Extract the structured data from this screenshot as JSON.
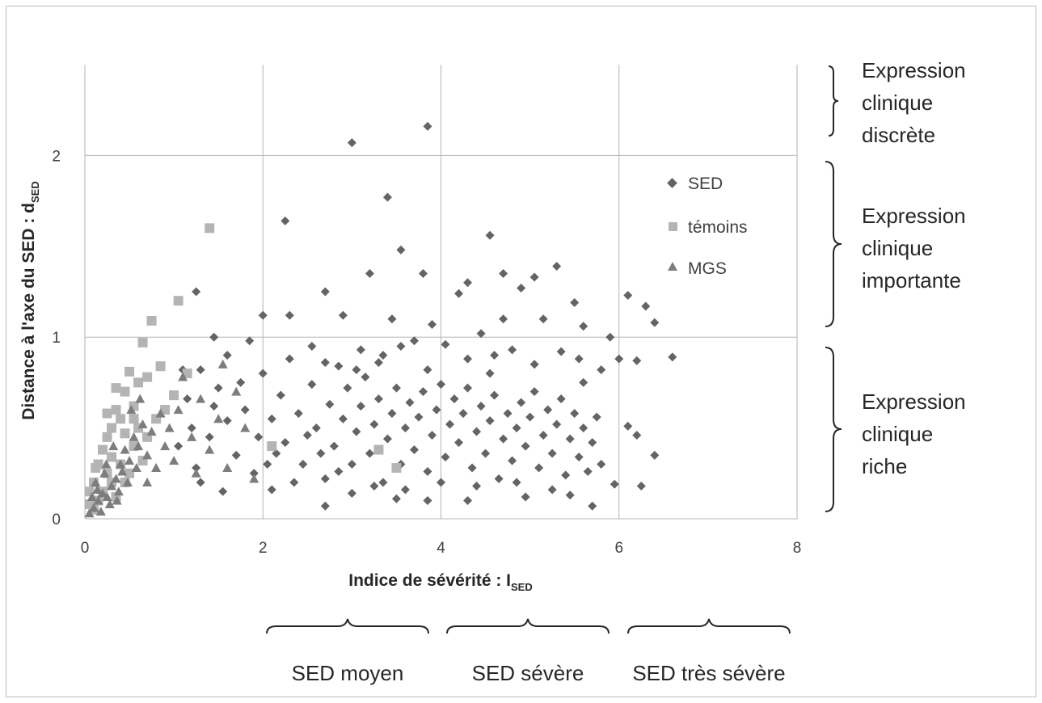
{
  "chart_data": {
    "type": "scatter",
    "xlabel": {
      "main": "Indice de sévérité : I",
      "sub": "SED"
    },
    "ylabel": {
      "main": "Distance à l'axe du SED : d",
      "sub": "SED"
    },
    "xlim": [
      0,
      8
    ],
    "ylim": [
      0,
      2.5
    ],
    "xticks": [
      "0",
      "2",
      "4",
      "6",
      "8"
    ],
    "yticks": [
      "0",
      "1",
      "2"
    ],
    "grid": true,
    "legend_position": "top-right",
    "series": [
      {
        "name": "SED",
        "marker": "diamond",
        "color": "#646464",
        "points": [
          [
            3.85,
            2.16
          ],
          [
            3.0,
            2.07
          ],
          [
            3.4,
            1.77
          ],
          [
            2.25,
            1.64
          ],
          [
            4.55,
            1.56
          ],
          [
            3.55,
            1.48
          ],
          [
            5.3,
            1.39
          ],
          [
            3.2,
            1.35
          ],
          [
            3.8,
            1.35
          ],
          [
            4.7,
            1.35
          ],
          [
            1.25,
            1.25
          ],
          [
            5.5,
            1.19
          ],
          [
            6.1,
            1.23
          ],
          [
            6.3,
            1.17
          ],
          [
            6.4,
            1.08
          ],
          [
            4.3,
            1.3
          ],
          [
            4.2,
            1.24
          ],
          [
            5.05,
            1.33
          ],
          [
            4.9,
            1.27
          ],
          [
            2.7,
            1.25
          ],
          [
            2.9,
            1.12
          ],
          [
            2.0,
            1.12
          ],
          [
            1.45,
            1.0
          ],
          [
            2.3,
            1.12
          ],
          [
            6.6,
            0.89
          ],
          [
            6.2,
            0.87
          ],
          [
            6.0,
            0.88
          ],
          [
            5.9,
            1.0
          ],
          [
            5.6,
            1.06
          ],
          [
            3.9,
            1.07
          ],
          [
            4.7,
            1.1
          ],
          [
            3.45,
            1.1
          ],
          [
            3.7,
            0.98
          ],
          [
            4.45,
            1.02
          ],
          [
            5.15,
            1.1
          ],
          [
            1.3,
            0.82
          ],
          [
            1.6,
            0.9
          ],
          [
            1.85,
            0.98
          ],
          [
            1.15,
            0.66
          ],
          [
            1.5,
            0.72
          ],
          [
            2.0,
            0.8
          ],
          [
            2.3,
            0.88
          ],
          [
            2.55,
            0.95
          ],
          [
            2.85,
            0.84
          ],
          [
            3.1,
            0.93
          ],
          [
            3.3,
            0.86
          ],
          [
            3.55,
            0.95
          ],
          [
            3.85,
            0.82
          ],
          [
            4.05,
            0.96
          ],
          [
            4.3,
            0.88
          ],
          [
            4.55,
            0.8
          ],
          [
            4.8,
            0.93
          ],
          [
            5.05,
            0.85
          ],
          [
            5.35,
            0.92
          ],
          [
            5.6,
            0.75
          ],
          [
            5.8,
            0.82
          ],
          [
            6.1,
            0.51
          ],
          [
            6.2,
            0.46
          ],
          [
            6.4,
            0.35
          ],
          [
            6.25,
            0.18
          ],
          [
            5.95,
            0.19
          ],
          [
            5.7,
            0.07
          ],
          [
            4.3,
            0.1
          ],
          [
            3.85,
            0.1
          ],
          [
            3.5,
            0.11
          ],
          [
            2.7,
            0.07
          ],
          [
            3.0,
            0.14
          ],
          [
            4.95,
            0.12
          ],
          [
            5.45,
            0.13
          ],
          [
            2.1,
            0.16
          ],
          [
            1.25,
            0.28
          ],
          [
            1.4,
            0.45
          ],
          [
            1.7,
            0.35
          ],
          [
            1.3,
            0.2
          ],
          [
            1.9,
            0.25
          ],
          [
            2.1,
            0.55
          ],
          [
            2.2,
            0.68
          ],
          [
            2.25,
            0.42
          ],
          [
            2.4,
            0.58
          ],
          [
            2.45,
            0.3
          ],
          [
            2.55,
            0.74
          ],
          [
            2.6,
            0.5
          ],
          [
            2.7,
            0.22
          ],
          [
            2.75,
            0.63
          ],
          [
            2.8,
            0.4
          ],
          [
            2.9,
            0.55
          ],
          [
            2.95,
            0.72
          ],
          [
            3.0,
            0.3
          ],
          [
            3.05,
            0.48
          ],
          [
            3.1,
            0.62
          ],
          [
            3.15,
            0.78
          ],
          [
            3.2,
            0.36
          ],
          [
            3.25,
            0.52
          ],
          [
            3.3,
            0.66
          ],
          [
            3.35,
            0.2
          ],
          [
            3.4,
            0.44
          ],
          [
            3.45,
            0.58
          ],
          [
            3.5,
            0.72
          ],
          [
            3.55,
            0.3
          ],
          [
            3.6,
            0.5
          ],
          [
            3.65,
            0.64
          ],
          [
            3.7,
            0.38
          ],
          [
            3.75,
            0.56
          ],
          [
            3.8,
            0.7
          ],
          [
            3.85,
            0.26
          ],
          [
            3.9,
            0.46
          ],
          [
            3.95,
            0.6
          ],
          [
            4.0,
            0.74
          ],
          [
            4.05,
            0.34
          ],
          [
            4.1,
            0.52
          ],
          [
            4.15,
            0.66
          ],
          [
            4.2,
            0.42
          ],
          [
            4.25,
            0.58
          ],
          [
            4.3,
            0.72
          ],
          [
            4.35,
            0.28
          ],
          [
            4.4,
            0.48
          ],
          [
            4.45,
            0.62
          ],
          [
            4.5,
            0.36
          ],
          [
            4.55,
            0.54
          ],
          [
            4.6,
            0.68
          ],
          [
            4.65,
            0.22
          ],
          [
            4.7,
            0.44
          ],
          [
            4.75,
            0.58
          ],
          [
            4.8,
            0.32
          ],
          [
            4.85,
            0.5
          ],
          [
            4.9,
            0.64
          ],
          [
            4.95,
            0.4
          ],
          [
            5.0,
            0.56
          ],
          [
            5.05,
            0.7
          ],
          [
            5.1,
            0.28
          ],
          [
            5.15,
            0.46
          ],
          [
            5.2,
            0.6
          ],
          [
            5.25,
            0.36
          ],
          [
            5.3,
            0.52
          ],
          [
            5.35,
            0.66
          ],
          [
            5.4,
            0.24
          ],
          [
            5.45,
            0.44
          ],
          [
            5.5,
            0.58
          ],
          [
            5.55,
            0.34
          ],
          [
            5.6,
            0.5
          ],
          [
            5.65,
            0.26
          ],
          [
            5.7,
            0.42
          ],
          [
            5.75,
            0.56
          ],
          [
            5.8,
            0.3
          ],
          [
            2.15,
            0.36
          ],
          [
            2.35,
            0.2
          ],
          [
            2.5,
            0.46
          ],
          [
            2.65,
            0.36
          ],
          [
            2.85,
            0.26
          ],
          [
            3.05,
            0.82
          ],
          [
            3.25,
            0.18
          ],
          [
            3.6,
            0.16
          ],
          [
            4.0,
            0.2
          ],
          [
            4.4,
            0.18
          ],
          [
            4.6,
            0.9
          ],
          [
            4.85,
            0.2
          ],
          [
            5.25,
            0.16
          ],
          [
            5.55,
            0.88
          ],
          [
            3.35,
            0.9
          ],
          [
            2.7,
            0.86
          ],
          [
            1.8,
            0.6
          ],
          [
            1.95,
            0.45
          ],
          [
            1.6,
            0.54
          ],
          [
            1.75,
            0.75
          ],
          [
            2.05,
            0.3
          ],
          [
            1.45,
            0.62
          ],
          [
            1.2,
            0.5
          ],
          [
            1.05,
            0.4
          ],
          [
            1.1,
            0.82
          ],
          [
            1.55,
            0.15
          ]
        ]
      },
      {
        "name": "témoins",
        "marker": "square",
        "color": "#b4b4b4",
        "points": [
          [
            1.4,
            1.6
          ],
          [
            1.05,
            1.2
          ],
          [
            0.75,
            1.09
          ],
          [
            0.65,
            0.97
          ],
          [
            0.85,
            0.84
          ],
          [
            0.5,
            0.81
          ],
          [
            0.6,
            0.75
          ],
          [
            0.7,
            0.78
          ],
          [
            0.45,
            0.7
          ],
          [
            0.55,
            0.62
          ],
          [
            0.35,
            0.6
          ],
          [
            0.4,
            0.55
          ],
          [
            0.3,
            0.5
          ],
          [
            0.25,
            0.45
          ],
          [
            0.45,
            0.47
          ],
          [
            0.2,
            0.38
          ],
          [
            0.3,
            0.34
          ],
          [
            0.15,
            0.3
          ],
          [
            0.25,
            0.25
          ],
          [
            0.1,
            0.2
          ],
          [
            0.2,
            0.15
          ],
          [
            0.35,
            0.12
          ],
          [
            0.05,
            0.08
          ],
          [
            0.1,
            0.05
          ],
          [
            0.4,
            0.3
          ],
          [
            0.55,
            0.4
          ],
          [
            0.6,
            0.5
          ],
          [
            0.5,
            0.25
          ],
          [
            0.65,
            0.32
          ],
          [
            0.3,
            0.2
          ],
          [
            0.15,
            0.1
          ],
          [
            1.0,
            0.68
          ],
          [
            1.15,
            0.8
          ],
          [
            2.1,
            0.4
          ],
          [
            3.5,
            0.28
          ],
          [
            3.3,
            0.38
          ],
          [
            0.8,
            0.55
          ],
          [
            0.7,
            0.45
          ],
          [
            0.9,
            0.6
          ],
          [
            0.05,
            0.15
          ],
          [
            0.35,
            0.72
          ],
          [
            0.25,
            0.58
          ],
          [
            0.45,
            0.2
          ],
          [
            0.55,
            0.55
          ],
          [
            0.12,
            0.28
          ]
        ]
      },
      {
        "name": "MGS",
        "marker": "triangle",
        "color": "#7d7d7d",
        "points": [
          [
            0.05,
            0.03
          ],
          [
            0.1,
            0.06
          ],
          [
            0.15,
            0.1
          ],
          [
            0.2,
            0.14
          ],
          [
            0.25,
            0.12
          ],
          [
            0.3,
            0.18
          ],
          [
            0.12,
            0.2
          ],
          [
            0.22,
            0.25
          ],
          [
            0.35,
            0.22
          ],
          [
            0.4,
            0.3
          ],
          [
            0.28,
            0.08
          ],
          [
            0.18,
            0.04
          ],
          [
            0.45,
            0.38
          ],
          [
            0.5,
            0.32
          ],
          [
            0.55,
            0.45
          ],
          [
            0.6,
            0.4
          ],
          [
            0.38,
            0.15
          ],
          [
            0.42,
            0.26
          ],
          [
            0.65,
            0.52
          ],
          [
            0.7,
            0.35
          ],
          [
            0.75,
            0.48
          ],
          [
            0.8,
            0.28
          ],
          [
            0.85,
            0.58
          ],
          [
            0.9,
            0.4
          ],
          [
            0.95,
            0.5
          ],
          [
            1.0,
            0.32
          ],
          [
            1.05,
            0.6
          ],
          [
            1.2,
            0.45
          ],
          [
            1.3,
            0.66
          ],
          [
            1.4,
            0.38
          ],
          [
            1.5,
            0.55
          ],
          [
            1.6,
            0.28
          ],
          [
            1.7,
            0.7
          ],
          [
            1.8,
            0.5
          ],
          [
            1.9,
            0.22
          ],
          [
            1.55,
            0.85
          ],
          [
            1.25,
            0.25
          ],
          [
            1.1,
            0.78
          ],
          [
            0.08,
            0.12
          ],
          [
            0.32,
            0.4
          ],
          [
            0.48,
            0.2
          ],
          [
            0.58,
            0.28
          ],
          [
            0.7,
            0.2
          ],
          [
            0.24,
            0.3
          ],
          [
            0.14,
            0.16
          ],
          [
            0.36,
            0.1
          ],
          [
            0.52,
            0.6
          ],
          [
            0.62,
            0.66
          ]
        ]
      }
    ]
  },
  "annotations": {
    "y_ranges": [
      {
        "lines": [
          "Expression",
          "clinique",
          "discrète"
        ]
      },
      {
        "lines": [
          "Expression",
          "clinique",
          "importante"
        ]
      },
      {
        "lines": [
          "Expression",
          "clinique",
          "riche"
        ]
      }
    ],
    "x_ranges": [
      {
        "label": "SED moyen"
      },
      {
        "label": "SED sévère"
      },
      {
        "label": "SED très sévère"
      }
    ]
  }
}
